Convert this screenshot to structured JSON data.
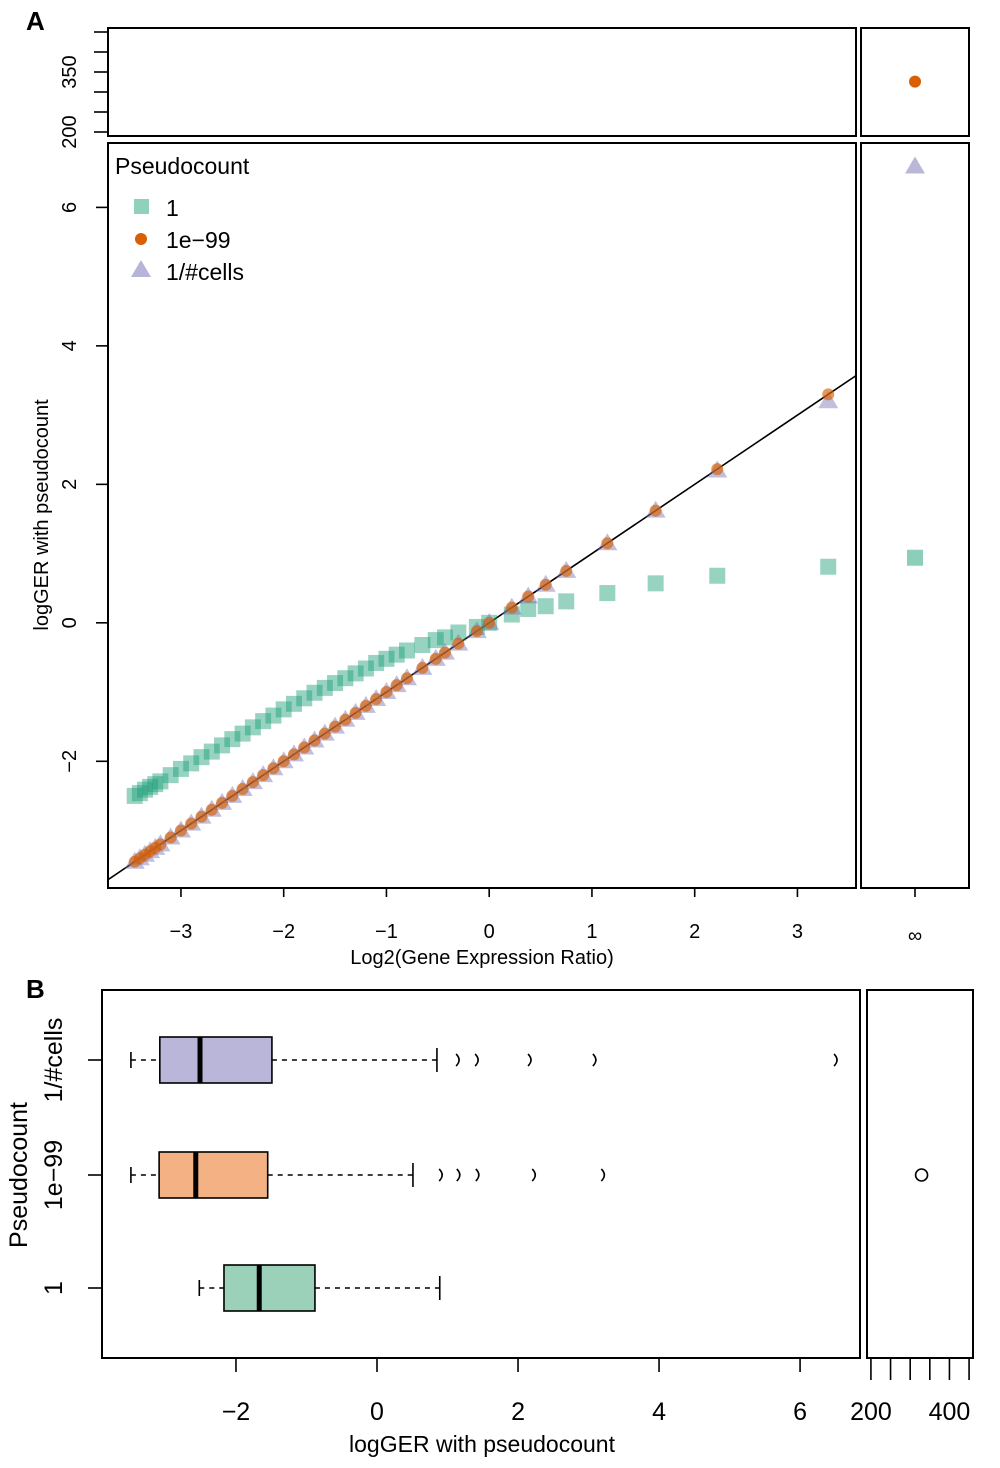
{
  "chart_data": [
    {
      "type": "scatter",
      "panel_label": "A",
      "xlabel": "Log2(Gene Expression Ratio)",
      "ylabel": "logGER with pseudocount",
      "xlim": [
        -3.71,
        3.57
      ],
      "ylim": [
        -3.83,
        6.93
      ],
      "xticks": [
        -3,
        -2,
        -1,
        0,
        1,
        2,
        3
      ],
      "yticks": [
        -2,
        0,
        2,
        4,
        6
      ],
      "infinity_label": "∞",
      "upper_ylim": [
        190,
        460
      ],
      "upper_yticks": [
        200,
        250,
        300,
        350,
        400,
        450
      ],
      "upper_ytick_labels": [
        {
          "value": 200,
          "label": "200"
        },
        {
          "value": 350,
          "label": "350"
        }
      ],
      "reference_line": "y = x",
      "legend": {
        "title": "Pseudocount",
        "position": "top-left",
        "entries": [
          "1",
          "1e−99",
          "1/#cells"
        ]
      },
      "x": [
        -3.45,
        -3.4,
        -3.35,
        -3.3,
        -3.25,
        -3.2,
        -3.1,
        -3.0,
        -2.9,
        -2.8,
        -2.7,
        -2.6,
        -2.5,
        -2.4,
        -2.3,
        -2.2,
        -2.1,
        -2.0,
        -1.9,
        -1.8,
        -1.7,
        -1.6,
        -1.5,
        -1.4,
        -1.3,
        -1.2,
        -1.1,
        -1.0,
        -0.9,
        -0.8,
        -0.65,
        -0.52,
        -0.43,
        -0.3,
        -0.12,
        0,
        0.22,
        0.38,
        0.55,
        0.75,
        1.15,
        1.62,
        2.22,
        3.3
      ],
      "series": [
        {
          "name": "1",
          "marker": "square",
          "color": "#1b9e77",
          "values": [
            -2.5,
            -2.46,
            -2.41,
            -2.37,
            -2.33,
            -2.29,
            -2.2,
            -2.11,
            -2.03,
            -1.94,
            -1.86,
            -1.77,
            -1.68,
            -1.6,
            -1.51,
            -1.42,
            -1.34,
            -1.25,
            -1.17,
            -1.09,
            -1.01,
            -0.94,
            -0.87,
            -0.8,
            -0.73,
            -0.66,
            -0.58,
            -0.52,
            -0.46,
            -0.4,
            -0.32,
            -0.25,
            -0.21,
            -0.14,
            -0.06,
            0,
            0.12,
            0.2,
            0.24,
            0.31,
            0.43,
            0.57,
            0.68,
            0.81
          ],
          "infinite_value": 0.94
        },
        {
          "name": "1e−99",
          "marker": "circle",
          "color": "#d95f02",
          "values": [
            -3.45,
            -3.4,
            -3.35,
            -3.3,
            -3.25,
            -3.2,
            -3.1,
            -3.0,
            -2.9,
            -2.8,
            -2.7,
            -2.6,
            -2.5,
            -2.4,
            -2.3,
            -2.2,
            -2.1,
            -2.0,
            -1.9,
            -1.8,
            -1.7,
            -1.6,
            -1.5,
            -1.4,
            -1.3,
            -1.2,
            -1.1,
            -1.0,
            -0.9,
            -0.8,
            -0.65,
            -0.52,
            -0.43,
            -0.3,
            -0.12,
            0,
            0.22,
            0.38,
            0.55,
            0.75,
            1.15,
            1.62,
            2.22,
            3.3
          ],
          "infinite_value": 326
        },
        {
          "name": "1/#cells",
          "marker": "triangle",
          "color": "#7570b3",
          "values": [
            -3.45,
            -3.4,
            -3.35,
            -3.3,
            -3.25,
            -3.2,
            -3.1,
            -3.0,
            -2.9,
            -2.8,
            -2.7,
            -2.6,
            -2.5,
            -2.4,
            -2.3,
            -2.2,
            -2.1,
            -2.0,
            -1.9,
            -1.8,
            -1.7,
            -1.6,
            -1.5,
            -1.4,
            -1.3,
            -1.2,
            -1.1,
            -1.0,
            -0.9,
            -0.8,
            -0.65,
            -0.52,
            -0.43,
            -0.3,
            -0.12,
            0,
            0.22,
            0.38,
            0.55,
            0.75,
            1.15,
            1.62,
            2.2,
            3.2
          ],
          "infinite_value": 6.59
        }
      ]
    },
    {
      "type": "boxplot",
      "panel_label": "B",
      "orientation": "horizontal",
      "xlabel": "logGER with pseudocount",
      "ylabel": "Pseudocount",
      "xlim": [
        -3.9,
        6.85
      ],
      "xticks": [
        -2,
        0,
        2,
        4,
        6
      ],
      "right_xlim": [
        190,
        460
      ],
      "right_xticks": [
        200,
        250,
        300,
        350,
        400,
        450
      ],
      "right_xtick_labels": [
        {
          "value": 200,
          "label": "200"
        },
        {
          "value": 400,
          "label": "400"
        }
      ],
      "categories": [
        "1/#cells",
        "1e−99",
        "1"
      ],
      "boxes": [
        {
          "name": "1/#cells",
          "fill": "#b9b6da",
          "whisker_low": -3.49,
          "q1": -3.08,
          "median": -2.51,
          "q3": -1.49,
          "whisker_high": 0.85,
          "outliers": [
            1.15,
            1.42,
            2.17,
            3.09,
            6.51
          ],
          "right_outliers": []
        },
        {
          "name": "1e−99",
          "fill": "#f4b183",
          "whisker_low": -3.49,
          "q1": -3.09,
          "median": -2.57,
          "q3": -1.55,
          "whisker_high": 0.51,
          "outliers": [
            0.91,
            1.16,
            1.43,
            2.23,
            3.21
          ],
          "right_outliers": [
            329
          ]
        },
        {
          "name": "1",
          "fill": "#9bd1b9",
          "whisker_low": -2.52,
          "q1": -2.17,
          "median": -1.67,
          "q3": -0.88,
          "whisker_high": 0.89,
          "outliers": [],
          "right_outliers": []
        }
      ]
    }
  ]
}
